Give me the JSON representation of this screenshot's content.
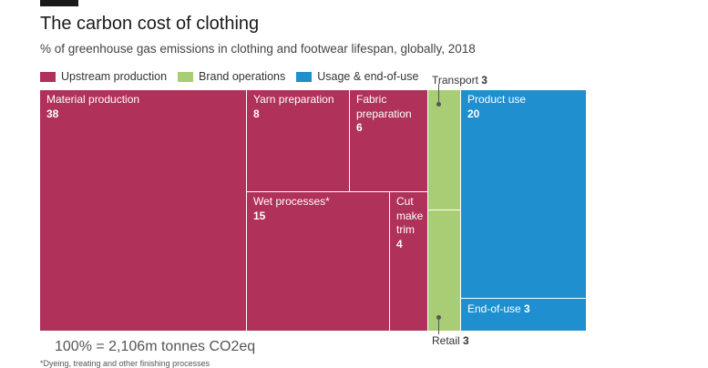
{
  "title": "The carbon cost of clothing",
  "subtitle": "% of greenhouse gas emissions in clothing and footwear lifespan, globally, 2018",
  "legend": [
    {
      "label": "Upstream production",
      "color": "#b0315a"
    },
    {
      "label": "Brand operations",
      "color": "#a9cd74"
    },
    {
      "label": "Usage & end-of-use",
      "color": "#1f8fd0"
    }
  ],
  "chart_data": {
    "type": "treemap",
    "unit": "% of total emissions",
    "groups": [
      {
        "name": "Upstream production",
        "color": "#b0315a",
        "items": [
          {
            "label": "Material production",
            "value": 38
          },
          {
            "label": "Yarn preparation",
            "value": 8
          },
          {
            "label": "Fabric preparation",
            "value": 6
          },
          {
            "label": "Wet processes*",
            "value": 15
          },
          {
            "label": "Cut make trim",
            "value": 4
          }
        ]
      },
      {
        "name": "Brand operations",
        "color": "#a9cd74",
        "items": [
          {
            "label": "Transport",
            "value": 3
          },
          {
            "label": "Retail",
            "value": 3
          }
        ]
      },
      {
        "name": "Usage & end-of-use",
        "color": "#1f8fd0",
        "items": [
          {
            "label": "Product use",
            "value": 20
          },
          {
            "label": "End-of-use",
            "value": 3
          }
        ]
      }
    ]
  },
  "cells": {
    "material_label": "Material production",
    "material_value": "38",
    "yarn_label": "Yarn preparation",
    "yarn_value": "8",
    "fabric_label": "Fabric preparation",
    "fabric_value": "6",
    "wet_label": "Wet processes*",
    "wet_value": "15",
    "cmt_label": "Cut make trim",
    "cmt_value": "4",
    "product_label": "Product use",
    "product_value": "20",
    "end_label": "End-of-use",
    "end_value": "3",
    "transport_label": "Transport",
    "transport_value": "3",
    "retail_label": "Retail",
    "retail_value": "3"
  },
  "footer": "100% = 2,106m tonnes CO2eq",
  "footnote": "*Dyeing, treating and other finishing processes"
}
